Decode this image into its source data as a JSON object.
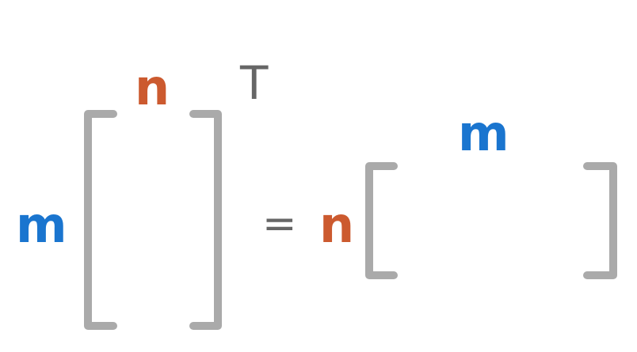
{
  "equation": {
    "lhs": {
      "rows_label": "m",
      "cols_label": "n",
      "operator": "T"
    },
    "equals": "=",
    "rhs": {
      "rows_label": "n",
      "cols_label": "m"
    }
  },
  "colors": {
    "m": "#1a75cf",
    "n": "#cc5a2f",
    "bracket": "#aaaaaa",
    "operator": "#666666"
  }
}
